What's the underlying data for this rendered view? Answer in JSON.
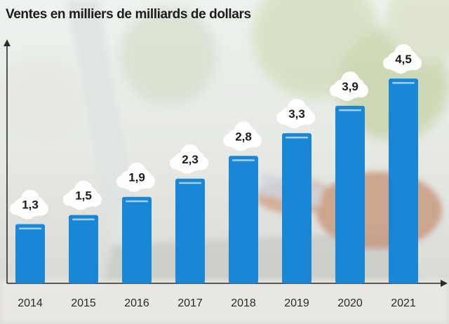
{
  "chart_data": {
    "type": "bar",
    "title": "Ventes en milliers de milliards de dollars",
    "xlabel": "",
    "ylabel": "",
    "categories": [
      "2014",
      "2015",
      "2016",
      "2017",
      "2018",
      "2019",
      "2020",
      "2021"
    ],
    "values": [
      1.3,
      1.5,
      1.9,
      2.3,
      2.8,
      3.3,
      3.9,
      4.5
    ],
    "value_labels": [
      "1,3",
      "1,5",
      "1,9",
      "2,3",
      "2,8",
      "3,3",
      "3,9",
      "4,5"
    ],
    "ylim": [
      0,
      5.5
    ],
    "grid": false,
    "bar_color": "#1a86d6",
    "label_shape": "cloud"
  }
}
